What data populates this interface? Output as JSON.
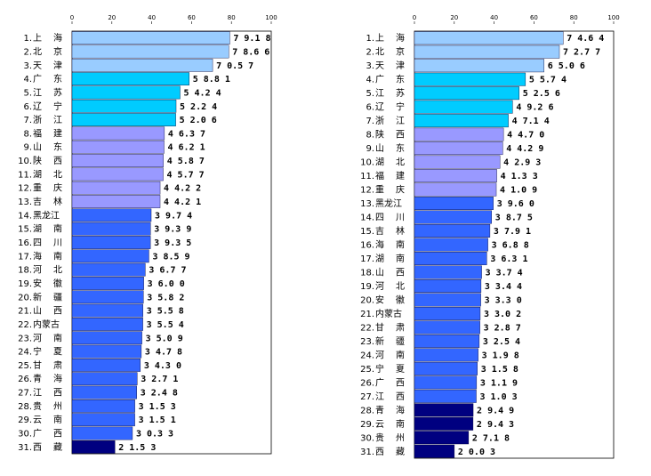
{
  "chart_data": [
    {
      "type": "bar",
      "orientation": "horizontal",
      "xlim": [
        0,
        100
      ],
      "ticks": [
        "0",
        "20",
        "40",
        "60",
        "80",
        "100"
      ],
      "grid": false,
      "categories": [
        "1.上  海",
        "2.北  京",
        "3.天  津",
        "4.广  东",
        "5.江  苏",
        "6.辽  宁",
        "7.浙  江",
        "8.福  建",
        "9.山  东",
        "10.陕  西",
        "11.湖  北",
        "12.重  庆",
        "13.吉  林",
        "14.黑龙江",
        "15.湖  南",
        "16.四  川",
        "17.海  南",
        "18.河  北",
        "19.安  徽",
        "20.新  疆",
        "21.山  西",
        "22.内蒙古",
        "23.河  南",
        "24.宁  夏",
        "25.甘  肃",
        "26.青  海",
        "27.江  西",
        "28.贵  州",
        "29.云  南",
        "30.广  西",
        "31.西  藏"
      ],
      "values": [
        79.18,
        78.66,
        70.57,
        58.81,
        54.24,
        52.24,
        52.06,
        46.37,
        46.21,
        45.87,
        45.77,
        44.22,
        44.21,
        39.74,
        39.39,
        39.35,
        38.59,
        36.77,
        36.0,
        35.82,
        35.58,
        35.54,
        35.09,
        34.78,
        34.3,
        32.71,
        32.48,
        31.53,
        31.51,
        30.33,
        21.53
      ],
      "value_labels": [
        "79.18",
        "78.66",
        "70.57",
        "58.81",
        "54.24",
        "52.24",
        "52.06",
        "46.37",
        "46.21",
        "45.87",
        "45.77",
        "44.22",
        "44.21",
        "39.74",
        "39.39",
        "39.35",
        "38.59",
        "36.77",
        "36.00",
        "35.82",
        "35.58",
        "35.54",
        "35.09",
        "34.78",
        "34.30",
        "32.71",
        "32.48",
        "31.53",
        "31.51",
        "30.33",
        "21.53"
      ],
      "groups": [
        0,
        0,
        0,
        1,
        1,
        1,
        1,
        2,
        2,
        2,
        2,
        2,
        2,
        3,
        3,
        3,
        3,
        3,
        3,
        3,
        3,
        3,
        3,
        3,
        3,
        3,
        3,
        3,
        3,
        3,
        4
      ]
    },
    {
      "type": "bar",
      "orientation": "horizontal",
      "xlim": [
        0,
        100
      ],
      "ticks": [
        "0",
        "20",
        "40",
        "60",
        "80",
        "100"
      ],
      "grid": false,
      "categories": [
        "1.上  海",
        "2.北  京",
        "3.天  津",
        "4.广  东",
        "5.江  苏",
        "6.辽  宁",
        "7.浙  江",
        "8.陕  西",
        "9.山  东",
        "10.湖  北",
        "11.福  建",
        "12.重  庆",
        "13.黑龙江",
        "14.四  川",
        "15.吉  林",
        "16.海  南",
        "17.湖  南",
        "18.山  西",
        "19.河  北",
        "20.安  徽",
        "21.内蒙古",
        "22.甘  肃",
        "23.新  疆",
        "24.河  南",
        "25.宁  夏",
        "26.广  西",
        "27.江  西",
        "28.青  海",
        "29.云  南",
        "30.贵  州",
        "31.西  藏"
      ],
      "values": [
        74.64,
        72.77,
        65.06,
        55.74,
        52.56,
        49.26,
        47.14,
        44.7,
        44.29,
        42.93,
        41.33,
        41.09,
        39.6,
        38.75,
        37.91,
        36.88,
        36.31,
        33.74,
        33.44,
        33.3,
        33.02,
        32.87,
        32.54,
        31.98,
        31.58,
        31.19,
        31.03,
        29.49,
        29.43,
        27.18,
        20.03
      ],
      "value_labels": [
        "74.64",
        "72.77",
        "65.06",
        "55.74",
        "52.56",
        "49.26",
        "47.14",
        "44.70",
        "44.29",
        "42.93",
        "41.33",
        "41.09",
        "39.60",
        "38.75",
        "37.91",
        "36.88",
        "36.31",
        "33.74",
        "33.44",
        "33.30",
        "33.02",
        "32.87",
        "32.54",
        "31.98",
        "31.58",
        "31.19",
        "31.03",
        "29.49",
        "29.43",
        "27.18",
        "20.03"
      ],
      "groups": [
        0,
        0,
        0,
        1,
        1,
        1,
        1,
        2,
        2,
        2,
        2,
        2,
        3,
        3,
        3,
        3,
        3,
        3,
        3,
        3,
        3,
        3,
        3,
        3,
        3,
        3,
        3,
        4,
        4,
        4,
        4
      ]
    }
  ],
  "colors": {
    "group_fills": [
      "#99ccff",
      "#00ccff",
      "#9999ff",
      "#3366ff",
      "#000080"
    ],
    "bar_stroke": "#000033",
    "axis": "#000000"
  }
}
